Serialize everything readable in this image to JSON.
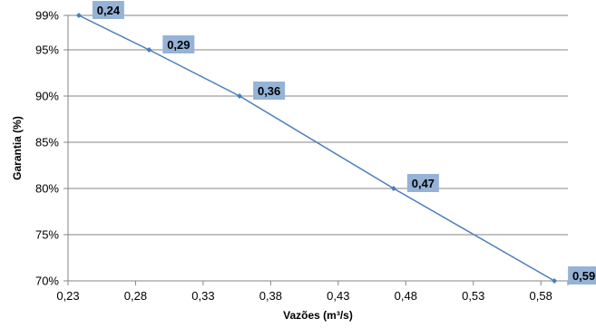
{
  "chart_data": {
    "type": "line",
    "x": [
      0.238,
      0.29,
      0.357,
      0.471,
      0.59
    ],
    "y": [
      99,
      95,
      90,
      80,
      70
    ],
    "data_labels": [
      "0,24",
      "0,29",
      "0,36",
      "0,47",
      "0,59"
    ],
    "xlabel": "Vazões (m³/s)",
    "ylabel": "Garantia (%)",
    "xlim": [
      0.23,
      0.6
    ],
    "ylim": [
      70,
      99
    ],
    "x_ticks": [
      0.23,
      0.28,
      0.33,
      0.38,
      0.43,
      0.48,
      0.53,
      0.58
    ],
    "x_tick_labels": [
      "0,23",
      "0,28",
      "0,33",
      "0,38",
      "0,43",
      "0,48",
      "0,53",
      "0,58"
    ],
    "y_ticks": [
      70,
      75,
      80,
      85,
      90,
      95,
      99
    ],
    "y_tick_labels": [
      "70%",
      "75%",
      "80%",
      "85%",
      "90%",
      "95%",
      "99%"
    ],
    "grid": "horizontal",
    "line_color": "#4A7EBB",
    "label_box_color": "#95B3D7",
    "gridline_color": "#868686"
  }
}
